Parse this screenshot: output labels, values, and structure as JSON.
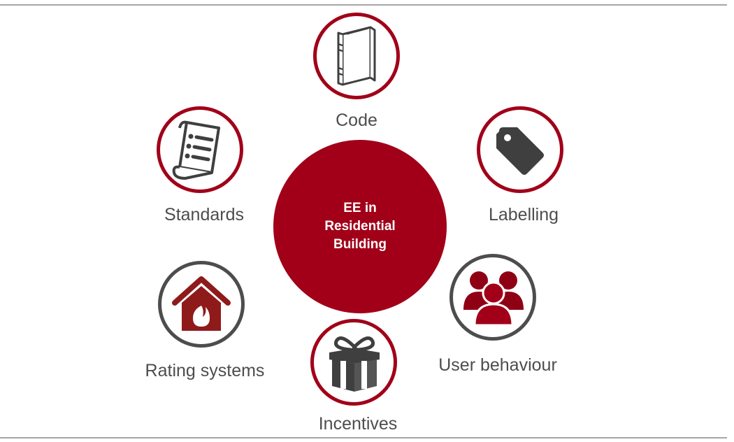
{
  "center": {
    "lines": [
      "EE in",
      "Residential",
      "Building"
    ]
  },
  "nodes": [
    {
      "key": "code",
      "label": "Code",
      "icon": "book-icon",
      "ring_color": "#a10018"
    },
    {
      "key": "labelling",
      "label": "Labelling",
      "icon": "tag-icon",
      "ring_color": "#a10018"
    },
    {
      "key": "user_behaviour",
      "label": "User behaviour",
      "icon": "users-icon",
      "ring_color": "#4d4d4d"
    },
    {
      "key": "incentives",
      "label": "Incentives",
      "icon": "gift-icon",
      "ring_color": "#a10018"
    },
    {
      "key": "rating_systems",
      "label": "Rating systems",
      "icon": "eco-house-icon",
      "ring_color": "#4d4d4d"
    },
    {
      "key": "standards",
      "label": "Standards",
      "icon": "checklist-scroll-icon",
      "ring_color": "#a10018"
    }
  ],
  "colors": {
    "accent": "#a10018",
    "dark": "#4d4d4d",
    "icon_grey": "#3f3f3f",
    "rule": "#a6a6a6"
  }
}
